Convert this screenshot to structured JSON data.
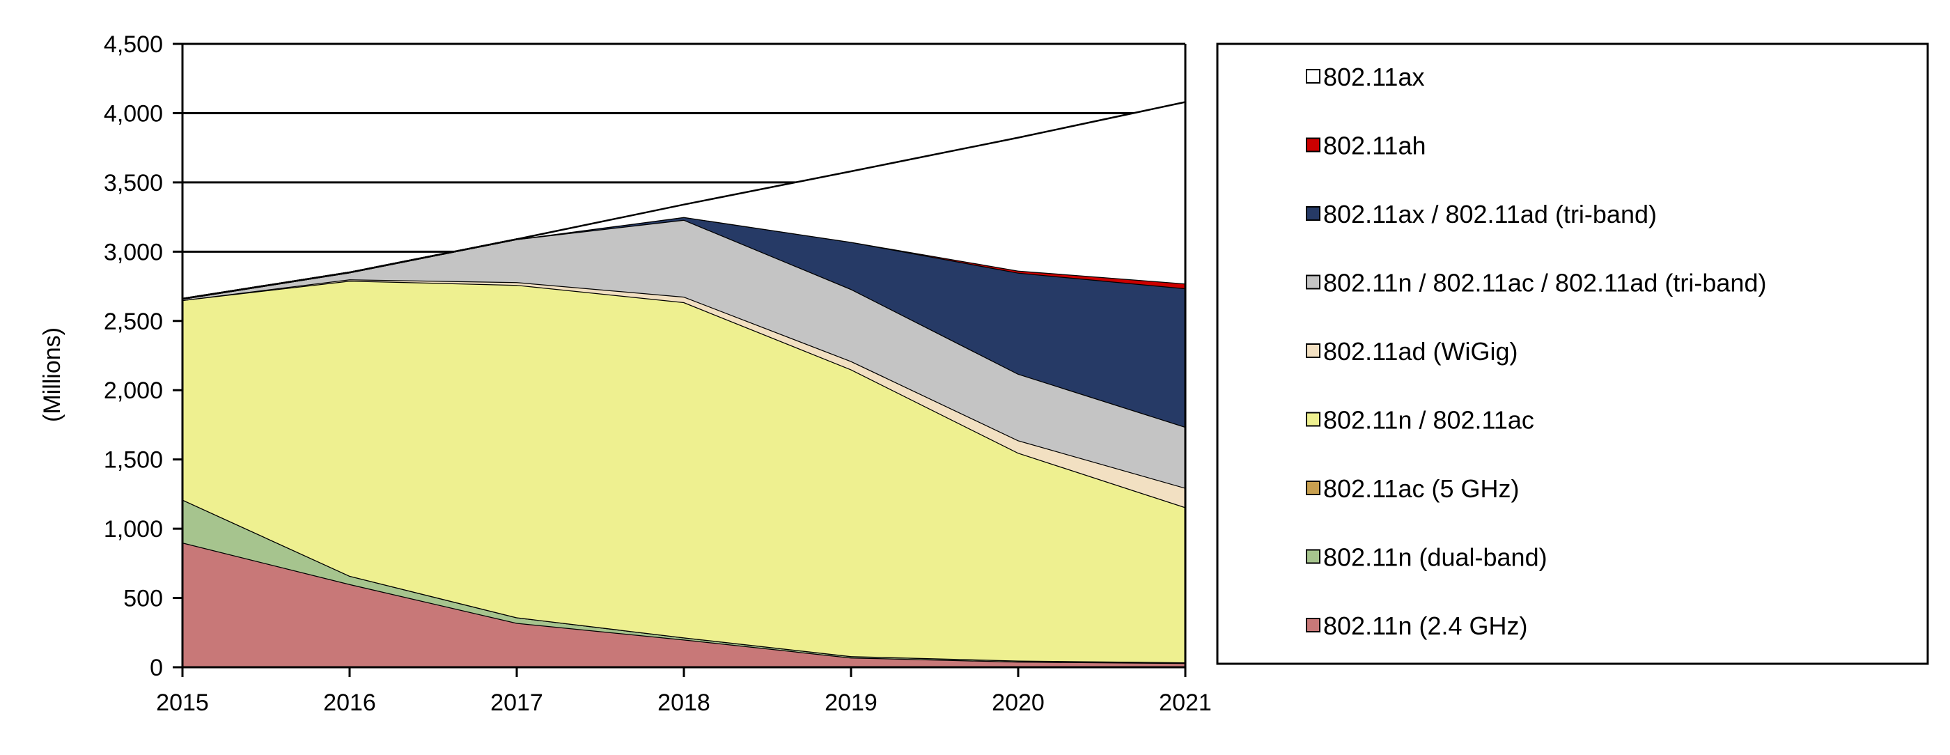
{
  "chart_data": {
    "type": "area",
    "stacked": true,
    "title": "",
    "xlabel": "",
    "ylabel": "(Millions)",
    "x": [
      "2015",
      "2016",
      "2017",
      "2018",
      "2019",
      "2020",
      "2021"
    ],
    "ylim": [
      0,
      4500
    ],
    "yticks": [
      0,
      500,
      1000,
      1500,
      2000,
      2500,
      3000,
      3500,
      4000,
      4500
    ],
    "ytick_labels": [
      "0",
      "500",
      "1,000",
      "1,500",
      "2,000",
      "2,500",
      "3,000",
      "3,500",
      "4,000",
      "4,500"
    ],
    "grid": true,
    "legend_position": "right",
    "series": [
      {
        "name": "802.11n (2.4 GHz)",
        "color": "#c87878",
        "values": [
          900,
          600,
          320,
          200,
          70,
          40,
          30
        ]
      },
      {
        "name": "802.11n (dual-band)",
        "color": "#a6c48e",
        "values": [
          310,
          60,
          40,
          15,
          10,
          8,
          5
        ]
      },
      {
        "name": "802.11ac (5 GHz)",
        "color": "#c8a050",
        "values": [
          0,
          0,
          0,
          0,
          0,
          0,
          0
        ]
      },
      {
        "name": "802.11n / 802.11ac",
        "color": "#eef090",
        "values": [
          1440,
          2130,
          2400,
          2420,
          2070,
          1500,
          1120
        ]
      },
      {
        "name": "802.11ad (WiGig)",
        "color": "#f2e0c2",
        "values": [
          0,
          10,
          20,
          40,
          60,
          90,
          140
        ]
      },
      {
        "name": "802.11n / 802.11ac / 802.11ad (tri-band)",
        "color": "#c4c4c4",
        "values": [
          10,
          50,
          310,
          555,
          520,
          480,
          440
        ]
      },
      {
        "name": "802.11ax / 802.11ad (tri-band)",
        "color": "#263a66",
        "values": [
          0,
          0,
          0,
          20,
          340,
          730,
          1000
        ]
      },
      {
        "name": "802.11ah",
        "color": "#cc0000",
        "values": [
          0,
          0,
          0,
          0,
          0,
          15,
          35
        ]
      },
      {
        "name": "802.11ax",
        "color": "#ffffff",
        "values": [
          0,
          0,
          0,
          90,
          510,
          960,
          1310
        ]
      }
    ]
  },
  "legend": {
    "items": [
      {
        "label": "802.11ax",
        "color": "#ffffff"
      },
      {
        "label": "802.11ah",
        "color": "#cc0000"
      },
      {
        "label": "802.11ax / 802.11ad (tri-band)",
        "color": "#263a66"
      },
      {
        "label": "802.11n / 802.11ac / 802.11ad (tri-band)",
        "color": "#c4c4c4"
      },
      {
        "label": "802.11ad (WiGig)",
        "color": "#f2e0c2"
      },
      {
        "label": "802.11n / 802.11ac",
        "color": "#eef090"
      },
      {
        "label": "802.11ac (5 GHz)",
        "color": "#c8a050"
      },
      {
        "label": "802.11n (dual-band)",
        "color": "#a6c48e"
      },
      {
        "label": "802.11n (2.4 GHz)",
        "color": "#c87878"
      }
    ]
  }
}
